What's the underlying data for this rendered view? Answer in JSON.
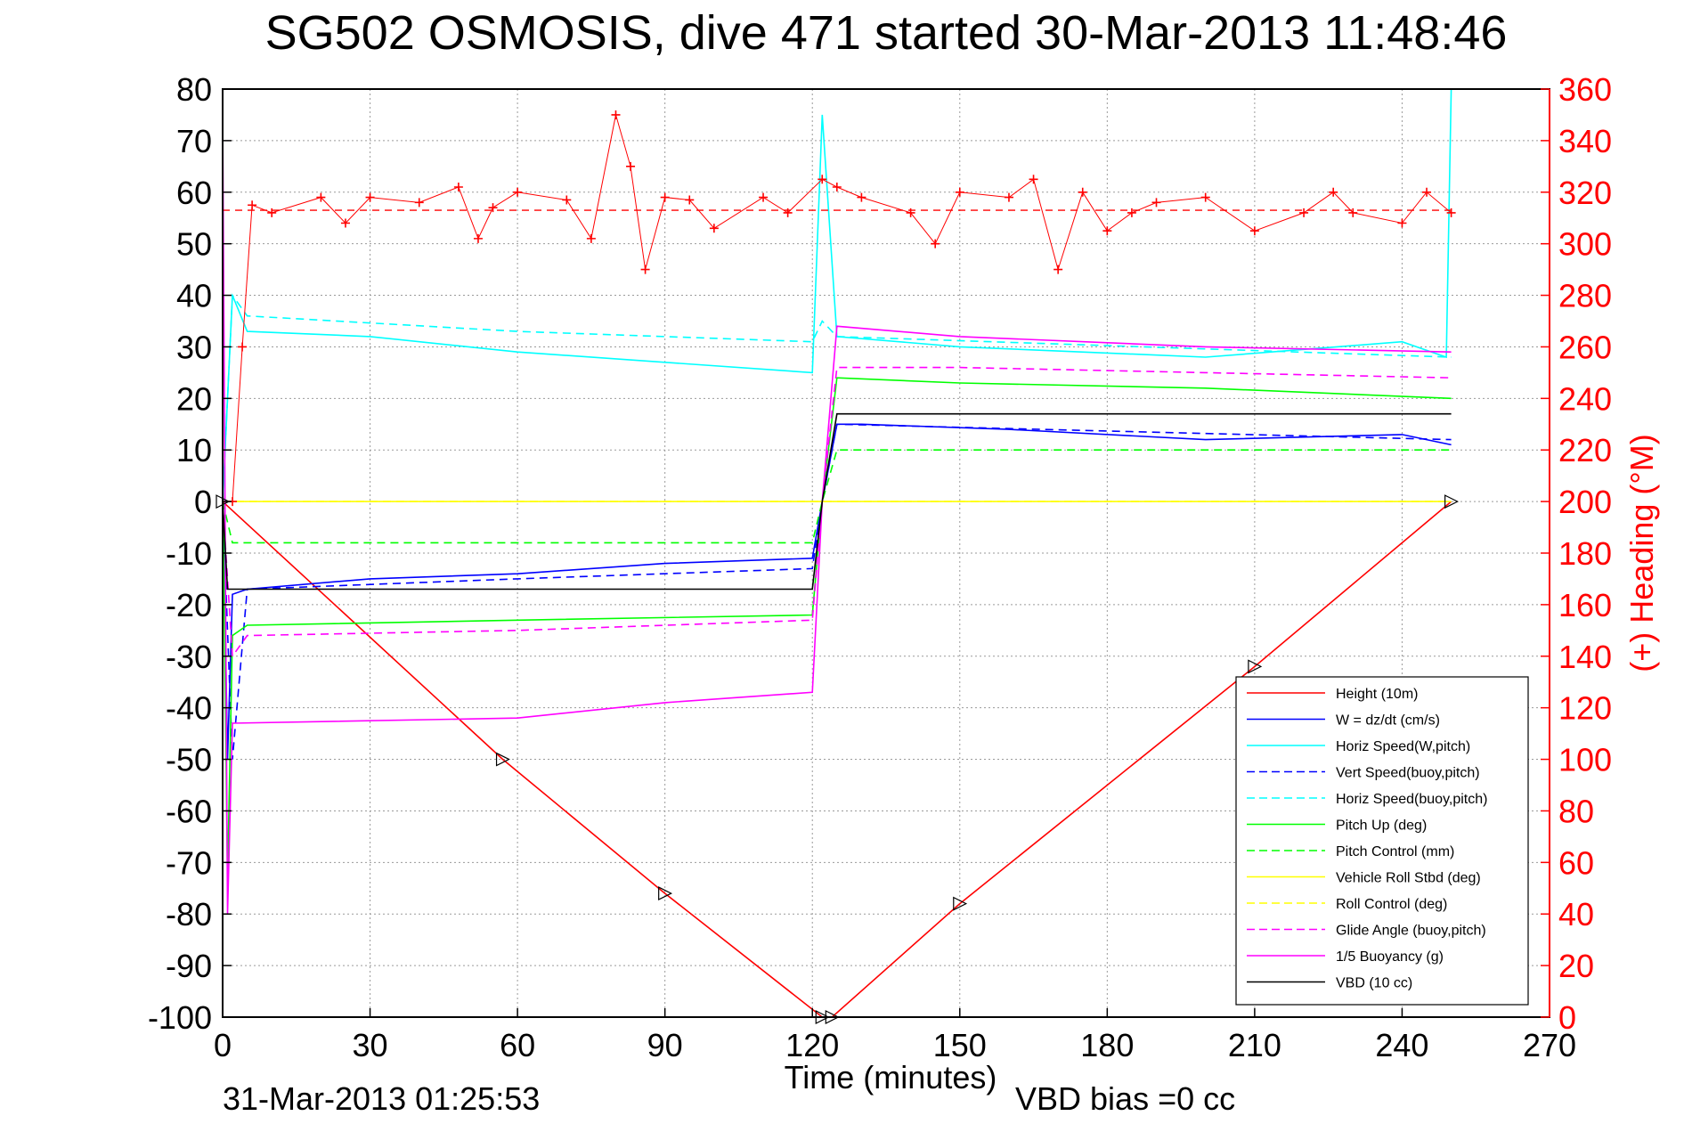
{
  "chart_data": {
    "type": "line",
    "title": "SG502 OSMOSIS, dive 471 started 30-Mar-2013 11:48:46",
    "xlabel": "Time (minutes)",
    "ylabel": "",
    "y2label": "(+) Heading (°M)",
    "xlim": [
      0,
      270
    ],
    "ylim": [
      -100,
      80
    ],
    "y2lim": [
      0,
      360
    ],
    "x_ticks": [
      "0",
      "30",
      "60",
      "90",
      "120",
      "150",
      "180",
      "210",
      "240",
      "270"
    ],
    "y_ticks": [
      "80",
      "70",
      "60",
      "50",
      "40",
      "30",
      "20",
      "10",
      "0",
      "-10",
      "-20",
      "-30",
      "-40",
      "-50",
      "-60",
      "-70",
      "-80",
      "-90",
      "-100"
    ],
    "y2_ticks": [
      "360",
      "340",
      "320",
      "300",
      "280",
      "260",
      "240",
      "220",
      "200",
      "180",
      "160",
      "140",
      "120",
      "100",
      "80",
      "60",
      "40",
      "20",
      "0"
    ],
    "grid": true,
    "legend_position": "bottom-right",
    "footer_left": "31-Mar-2013 01:25:53",
    "footer_right": "VBD bias =0 cc",
    "series": [
      {
        "name": "Height (10m)",
        "color": "#ff0000",
        "dash": false,
        "x": [
          0,
          57,
          90,
          122,
          124,
          150,
          210,
          250
        ],
        "y": [
          0,
          -50,
          -76,
          -100,
          -100,
          -78,
          -32,
          0
        ]
      },
      {
        "name": "W = dz/dt (cm/s)",
        "color": "#0000ff",
        "dash": false,
        "x": [
          0,
          1,
          2,
          5,
          30,
          60,
          90,
          120,
          122,
          125,
          130,
          160,
          200,
          240,
          250
        ],
        "y": [
          5,
          -50,
          -18,
          -17,
          -15,
          -14,
          -12,
          -11,
          0,
          15,
          15,
          14,
          12,
          13,
          11
        ]
      },
      {
        "name": "Horiz Speed(W,pitch)",
        "color": "#00ffff",
        "dash": false,
        "x": [
          0,
          2,
          5,
          30,
          60,
          90,
          120,
          122,
          125,
          150,
          200,
          240,
          249,
          250
        ],
        "y": [
          0,
          40,
          33,
          32,
          29,
          27,
          25,
          75,
          32,
          30,
          28,
          31,
          28,
          80
        ]
      },
      {
        "name": "Vert Speed(buoy,pitch)",
        "color": "#0000ff",
        "dash": true,
        "x": [
          0,
          2,
          5,
          60,
          120,
          122,
          125,
          250
        ],
        "y": [
          0,
          -50,
          -17,
          -15,
          -13,
          0,
          15,
          12
        ]
      },
      {
        "name": "Horiz Speed(buoy,pitch)",
        "color": "#00ffff",
        "dash": true,
        "x": [
          0,
          2,
          5,
          60,
          120,
          122,
          125,
          250
        ],
        "y": [
          0,
          40,
          36,
          33,
          31,
          35,
          32,
          28
        ]
      },
      {
        "name": "Pitch Up (deg)",
        "color": "#00ff00",
        "dash": false,
        "x": [
          0,
          1,
          2,
          5,
          60,
          120,
          122,
          125,
          150,
          200,
          250
        ],
        "y": [
          5,
          -73,
          -26,
          -24,
          -23,
          -22,
          0,
          24,
          23,
          22,
          20
        ]
      },
      {
        "name": "Pitch Control (mm)",
        "color": "#00ff00",
        "dash": true,
        "x": [
          0,
          2,
          120,
          122,
          125,
          250
        ],
        "y": [
          0,
          -8,
          -8,
          0,
          10,
          10
        ]
      },
      {
        "name": "Vehicle Roll Stbd (deg)",
        "color": "#ffff00",
        "dash": false,
        "x": [
          0,
          5,
          30,
          60,
          90,
          120,
          122,
          125,
          160,
          200,
          250
        ],
        "y": [
          0,
          0,
          0,
          0,
          0,
          0,
          0,
          0,
          0,
          0,
          0
        ]
      },
      {
        "name": "Roll Control (deg)",
        "color": "#ffff00",
        "dash": true,
        "x": [
          0,
          5,
          120,
          122,
          125,
          250
        ],
        "y": [
          0,
          0,
          0,
          0,
          0,
          0
        ]
      },
      {
        "name": "Glide Angle (buoy,pitch)",
        "color": "#ff00ff",
        "dash": true,
        "x": [
          0,
          2,
          5,
          60,
          120,
          122,
          125,
          150,
          200,
          250
        ],
        "y": [
          0,
          -30,
          -26,
          -25,
          -23,
          0,
          26,
          26,
          25,
          24
        ]
      },
      {
        "name": "1/5 Buoyancy (g)",
        "color": "#ff00ff",
        "dash": false,
        "x": [
          0,
          1,
          2,
          60,
          90,
          120,
          122,
          125,
          150,
          200,
          250
        ],
        "y": [
          75,
          -80,
          -43,
          -42,
          -39,
          -37,
          0,
          34,
          32,
          30,
          29
        ]
      },
      {
        "name": "VBD (10 cc)",
        "color": "#000000",
        "dash": false,
        "x": [
          0,
          1,
          2,
          120,
          122,
          125,
          250
        ],
        "y": [
          0,
          -17,
          -17,
          -17,
          0,
          17,
          17
        ]
      }
    ],
    "heading": {
      "name": "(+) Heading",
      "color": "#ff0000",
      "mean_deg": 313,
      "x": [
        2,
        4,
        6,
        10,
        20,
        25,
        30,
        40,
        48,
        52,
        55,
        60,
        70,
        75,
        80,
        83,
        86,
        90,
        95,
        100,
        110,
        115,
        122,
        125,
        130,
        140,
        145,
        150,
        160,
        165,
        170,
        175,
        180,
        185,
        190,
        200,
        210,
        220,
        226,
        230,
        240,
        245,
        250
      ],
      "y": [
        200,
        260,
        315,
        312,
        318,
        308,
        318,
        316,
        322,
        302,
        314,
        320,
        317,
        302,
        350,
        330,
        290,
        318,
        317,
        306,
        318,
        312,
        325,
        322,
        318,
        312,
        300,
        320,
        318,
        325,
        290,
        320,
        305,
        312,
        316,
        318,
        305,
        312,
        320,
        312,
        308,
        320,
        312
      ]
    }
  }
}
